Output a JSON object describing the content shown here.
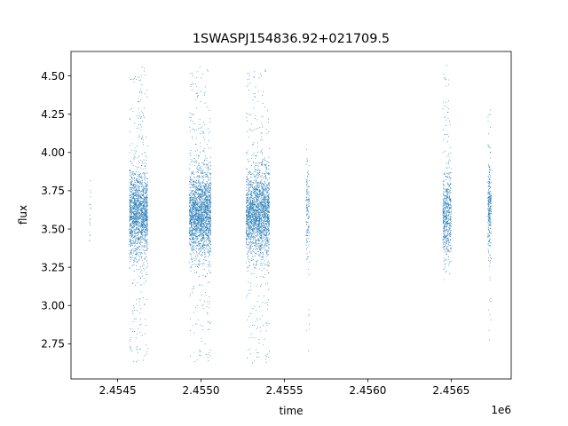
{
  "chart_data": {
    "type": "scatter",
    "title": "1SWASPJ154836.92+021709.5",
    "xlabel": "time",
    "ylabel": "flux",
    "x_offset_label": "1e6",
    "xlim": [
      2454220,
      2456860
    ],
    "ylim": [
      2.52,
      4.66
    ],
    "x_ticks": [
      2454500,
      2455000,
      2455500,
      2456000,
      2456500
    ],
    "x_tick_labels": [
      "2.4545",
      "2.4550",
      "2.4555",
      "2.4560",
      "2.4565"
    ],
    "y_ticks": [
      2.75,
      3.0,
      3.25,
      3.5,
      3.75,
      4.0,
      4.25,
      4.5
    ],
    "y_tick_labels": [
      "2.75",
      "3.00",
      "3.25",
      "3.50",
      "3.75",
      "4.00",
      "4.25",
      "4.50"
    ],
    "grid": false,
    "marker_color": "#1f77b4",
    "observing_seasons": [
      {
        "x_start": 2454330,
        "x_end": 2454340,
        "y_center": 3.62,
        "y_min": 3.22,
        "y_max": 4.02,
        "points": 20
      },
      {
        "x_start": 2454570,
        "x_end": 2454680,
        "y_center": 3.6,
        "y_min": 2.62,
        "y_max": 4.56,
        "points": 1800
      },
      {
        "x_start": 2454930,
        "x_end": 2455060,
        "y_center": 3.6,
        "y_min": 2.63,
        "y_max": 4.56,
        "points": 2200
      },
      {
        "x_start": 2455270,
        "x_end": 2455410,
        "y_center": 3.6,
        "y_min": 2.62,
        "y_max": 4.56,
        "points": 2200
      },
      {
        "x_start": 2455630,
        "x_end": 2455650,
        "y_center": 3.6,
        "y_min": 2.66,
        "y_max": 4.33,
        "points": 150
      },
      {
        "x_start": 2456450,
        "x_end": 2456500,
        "y_center": 3.6,
        "y_min": 3.17,
        "y_max": 4.57,
        "points": 600
      },
      {
        "x_start": 2456720,
        "x_end": 2456740,
        "y_center": 3.65,
        "y_min": 2.7,
        "y_max": 4.3,
        "points": 300
      }
    ]
  }
}
